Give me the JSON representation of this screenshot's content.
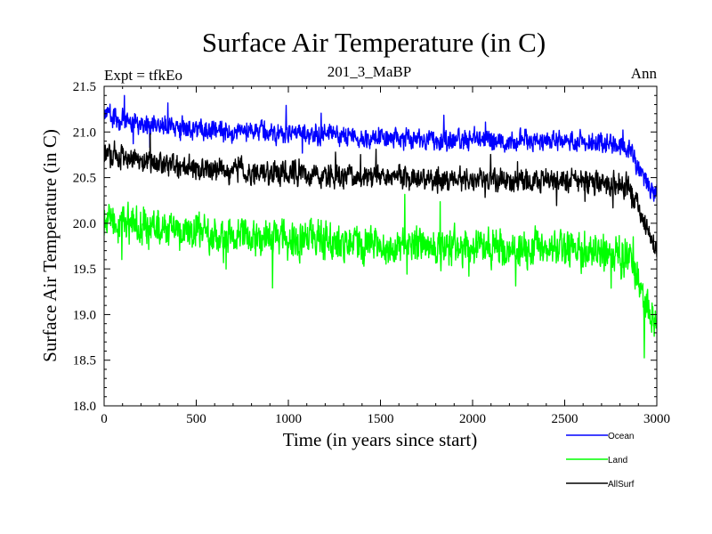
{
  "header": {
    "title": "Surface Air Temperature (in C)",
    "experiment": "Expt = tfkEo",
    "run_id": "201_3_MaBP",
    "season": "Ann"
  },
  "chart_data": {
    "type": "line",
    "title": "Surface Air Temperature (in C)",
    "xlabel": "Time (in years since start)",
    "ylabel": "Surface Air Temperature (in C)",
    "xlim": [
      0,
      3000
    ],
    "ylim": [
      18.0,
      21.5
    ],
    "x_ticks": [
      0,
      500,
      1000,
      1500,
      2000,
      2500,
      3000
    ],
    "y_ticks": [
      18.0,
      18.5,
      19.0,
      19.5,
      20.0,
      20.5,
      21.0,
      21.5
    ],
    "x_tick_labels": [
      "0",
      "500",
      "1000",
      "1500",
      "2000",
      "2500",
      "3000"
    ],
    "y_tick_labels": [
      "18.0",
      "18.5",
      "19.0",
      "19.5",
      "20.0",
      "20.5",
      "21.0",
      "21.5"
    ],
    "grid": false,
    "legend_position": "bottom-right, outside plot",
    "series": [
      {
        "name": "Ocean",
        "color": "#0000ff",
        "x": [
          0,
          100,
          200,
          300,
          400,
          500,
          600,
          700,
          800,
          900,
          1000,
          1100,
          1200,
          1300,
          1400,
          1500,
          1600,
          1700,
          1800,
          1900,
          2000,
          2100,
          2200,
          2300,
          2400,
          2500,
          2600,
          2700,
          2800,
          2850,
          2900,
          2950,
          3000
        ],
        "values": [
          21.2,
          21.12,
          21.1,
          21.07,
          21.05,
          21.03,
          21.02,
          21.0,
          21.0,
          20.98,
          20.98,
          20.97,
          20.97,
          20.95,
          20.93,
          20.95,
          20.93,
          20.92,
          20.92,
          20.9,
          20.92,
          20.9,
          20.9,
          20.92,
          20.9,
          20.9,
          20.9,
          20.87,
          20.85,
          20.82,
          20.6,
          20.45,
          20.3
        ],
        "min": 20.15,
        "max": 21.4
      },
      {
        "name": "Land",
        "color": "#00ff00",
        "x": [
          0,
          100,
          200,
          300,
          400,
          500,
          600,
          700,
          800,
          900,
          1000,
          1100,
          1200,
          1300,
          1400,
          1500,
          1600,
          1700,
          1800,
          1900,
          2000,
          2100,
          2200,
          2300,
          2400,
          2500,
          2600,
          2700,
          2800,
          2850,
          2900,
          2950,
          3000
        ],
        "values": [
          20.05,
          20.0,
          19.97,
          19.93,
          19.92,
          19.9,
          19.88,
          19.85,
          19.85,
          19.83,
          19.82,
          19.82,
          19.8,
          19.78,
          19.78,
          19.75,
          19.75,
          19.75,
          19.75,
          19.73,
          19.75,
          19.73,
          19.72,
          19.73,
          19.72,
          19.72,
          19.7,
          19.68,
          19.65,
          19.62,
          19.35,
          19.05,
          18.9
        ],
        "min": 18.4,
        "max": 20.6
      },
      {
        "name": "AllSurf",
        "color": "#000000",
        "x": [
          0,
          100,
          200,
          300,
          400,
          500,
          600,
          700,
          800,
          900,
          1000,
          1100,
          1200,
          1300,
          1400,
          1500,
          1600,
          1700,
          1800,
          1900,
          2000,
          2100,
          2200,
          2300,
          2400,
          2500,
          2600,
          2700,
          2800,
          2850,
          2900,
          2950,
          3000
        ],
        "values": [
          20.78,
          20.72,
          20.68,
          20.65,
          20.62,
          20.6,
          20.58,
          20.57,
          20.56,
          20.55,
          20.55,
          20.53,
          20.53,
          20.52,
          20.5,
          20.52,
          20.5,
          20.48,
          20.48,
          20.47,
          20.48,
          20.47,
          20.46,
          20.47,
          20.46,
          20.46,
          20.45,
          20.43,
          20.42,
          20.4,
          20.15,
          19.9,
          19.7
        ],
        "min": 19.55,
        "max": 21.05
      }
    ]
  }
}
